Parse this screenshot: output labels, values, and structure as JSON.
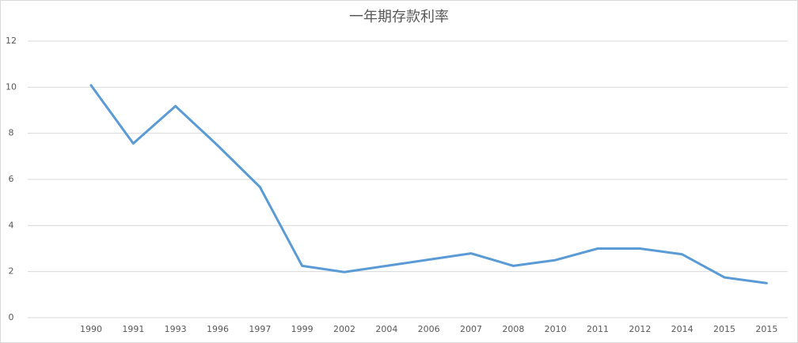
{
  "chart_data": {
    "type": "line",
    "title": "一年期存款利率",
    "categories": [
      null,
      "1990",
      "1991",
      "1993",
      "1996",
      "1997",
      "1999",
      "2002",
      "2004",
      "2006",
      "2007",
      "2008",
      "2010",
      "2011",
      "2012",
      "2014",
      "2015",
      "2015"
    ],
    "values": [
      null,
      10.08,
      7.56,
      9.18,
      7.47,
      5.67,
      2.25,
      1.98,
      2.25,
      2.52,
      2.79,
      2.25,
      2.5,
      3.0,
      3.0,
      2.75,
      1.75,
      1.5
    ],
    "color": "#5b9bd5",
    "ylim": [
      0,
      12
    ],
    "yticks": [
      0,
      2,
      4,
      6,
      8,
      10,
      12
    ],
    "grid": true
  }
}
